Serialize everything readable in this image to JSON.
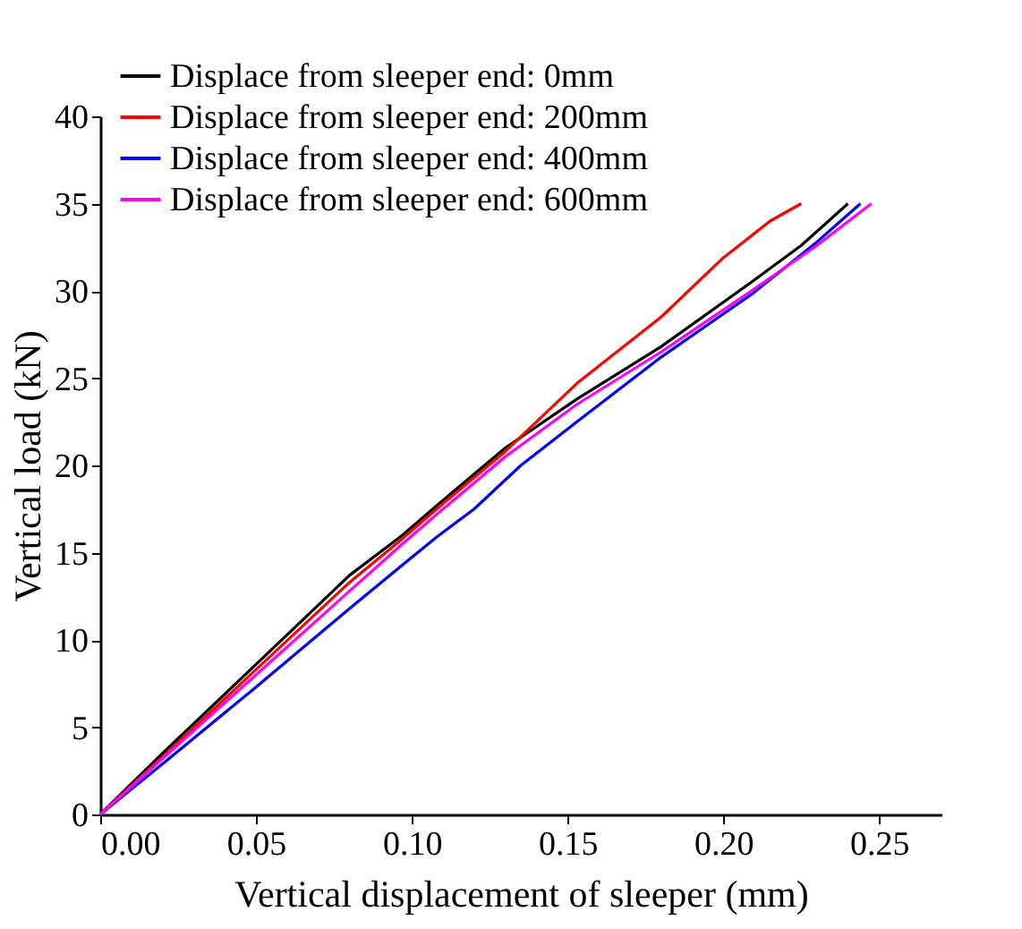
{
  "chart_data": {
    "type": "line",
    "xlabel": "Vertical displacement of sleeper (mm)",
    "ylabel": "Vertical load (kN)",
    "xlim": [
      0,
      0.27
    ],
    "ylim": [
      0,
      40
    ],
    "xticks": [
      {
        "value": 0,
        "label": "0.00"
      },
      0.05,
      {
        "value": 0.1,
        "label": "0.10"
      },
      0.15,
      {
        "value": 0.2,
        "label": "0.20"
      },
      0.25
    ],
    "yticks": [
      0,
      5,
      10,
      15,
      20,
      25,
      30,
      35,
      40
    ],
    "grid": false,
    "legend": "top",
    "marker": "none",
    "line_style": "solid",
    "series": [
      {
        "name": "Displace from sleeper end: 0mm",
        "color": "#000000",
        "x": [
          0,
          0.02,
          0.05,
          0.08,
          0.097,
          0.108,
          0.13,
          0.153,
          0.18,
          0.209,
          0.225,
          0.24
        ],
        "values": [
          0,
          3.5,
          8.6,
          13.7,
          16.0,
          17.7,
          21.0,
          23.8,
          26.8,
          30.5,
          32.6,
          35
        ]
      },
      {
        "name": "Displace from sleeper end: 200mm",
        "color": "#ff0000",
        "x": [
          0,
          0.02,
          0.05,
          0.08,
          0.097,
          0.108,
          0.13,
          0.153,
          0.18,
          0.2,
          0.215,
          0.225
        ],
        "values": [
          0,
          3.3,
          8.3,
          13.3,
          15.8,
          17.5,
          20.8,
          24.7,
          28.5,
          31.9,
          34.0,
          35
        ]
      },
      {
        "name": "Displace from sleeper end: 400mm",
        "color": "#0000ff",
        "x": [
          0,
          0.02,
          0.05,
          0.08,
          0.097,
          0.108,
          0.12,
          0.135,
          0.153,
          0.18,
          0.209,
          0.23,
          0.244
        ],
        "values": [
          0,
          2.9,
          7.3,
          11.8,
          14.3,
          15.9,
          17.5,
          20.0,
          22.5,
          26.2,
          29.8,
          32.8,
          35
        ]
      },
      {
        "name": "Displace from sleeper end: 600mm",
        "color": "#ff00ff",
        "x": [
          0,
          0.02,
          0.05,
          0.08,
          0.097,
          0.108,
          0.13,
          0.153,
          0.18,
          0.209,
          0.23,
          0.2475
        ],
        "values": [
          0,
          3.2,
          8.0,
          12.8,
          15.5,
          17.2,
          20.5,
          23.5,
          26.5,
          30.0,
          32.6,
          35
        ]
      }
    ]
  }
}
